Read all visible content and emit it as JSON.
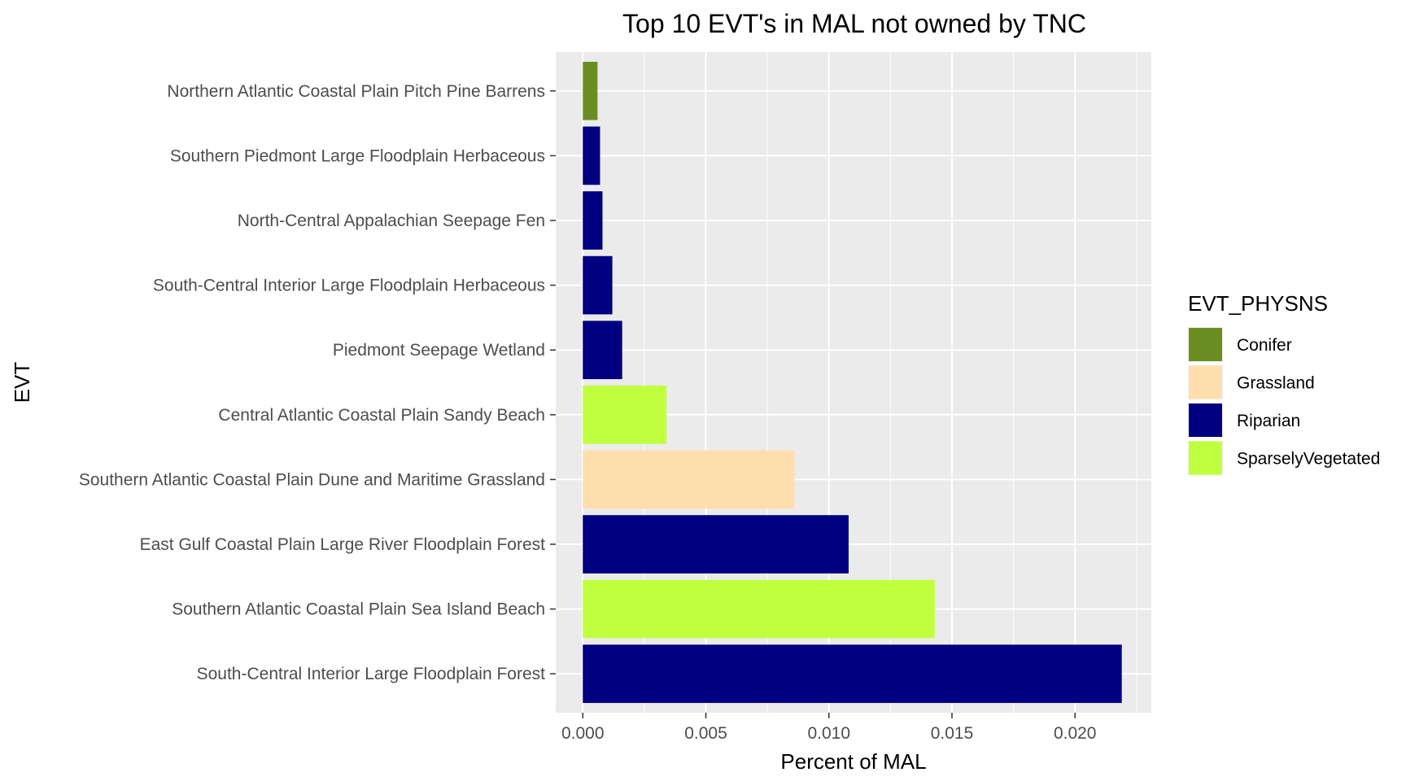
{
  "chart_data": {
    "type": "bar",
    "orientation": "horizontal",
    "title": "Top 10 EVT's in MAL not owned by TNC",
    "xlabel": "Percent of MAL",
    "ylabel": "EVT",
    "xlim": [
      -0.0011,
      0.0231
    ],
    "xticks": [
      0.0,
      0.005,
      0.01,
      0.015,
      0.02
    ],
    "xtick_labels": [
      "0.000",
      "0.005",
      "0.010",
      "0.015",
      "0.020"
    ],
    "grid": true,
    "legend": {
      "title": "EVT_PHYSNS",
      "position": "right",
      "entries": [
        {
          "label": "Conifer",
          "color": "#6b8e23"
        },
        {
          "label": "Grassland",
          "color": "#ffdead"
        },
        {
          "label": "Riparian",
          "color": "#000080"
        },
        {
          "label": "SparselyVegetated",
          "color": "#c0ff3e"
        }
      ]
    },
    "categories": [
      "Northern Atlantic Coastal Plain Pitch Pine Barrens",
      "Southern Piedmont Large Floodplain Herbaceous",
      "North-Central Appalachian Seepage Fen",
      "South-Central Interior Large Floodplain Herbaceous",
      "Piedmont Seepage Wetland",
      "Central Atlantic Coastal Plain Sandy Beach",
      "Southern Atlantic Coastal Plain Dune and Maritime Grassland",
      "East Gulf Coastal Plain Large River Floodplain Forest",
      "Southern Atlantic Coastal Plain Sea Island Beach",
      "South-Central Interior Large Floodplain Forest"
    ],
    "values": [
      0.0006,
      0.0007,
      0.0008,
      0.0012,
      0.0016,
      0.0034,
      0.0086,
      0.0108,
      0.0143,
      0.0219
    ],
    "groups": [
      "Conifer",
      "Riparian",
      "Riparian",
      "Riparian",
      "Riparian",
      "SparselyVegetated",
      "Grassland",
      "Riparian",
      "SparselyVegetated",
      "Riparian"
    ]
  }
}
